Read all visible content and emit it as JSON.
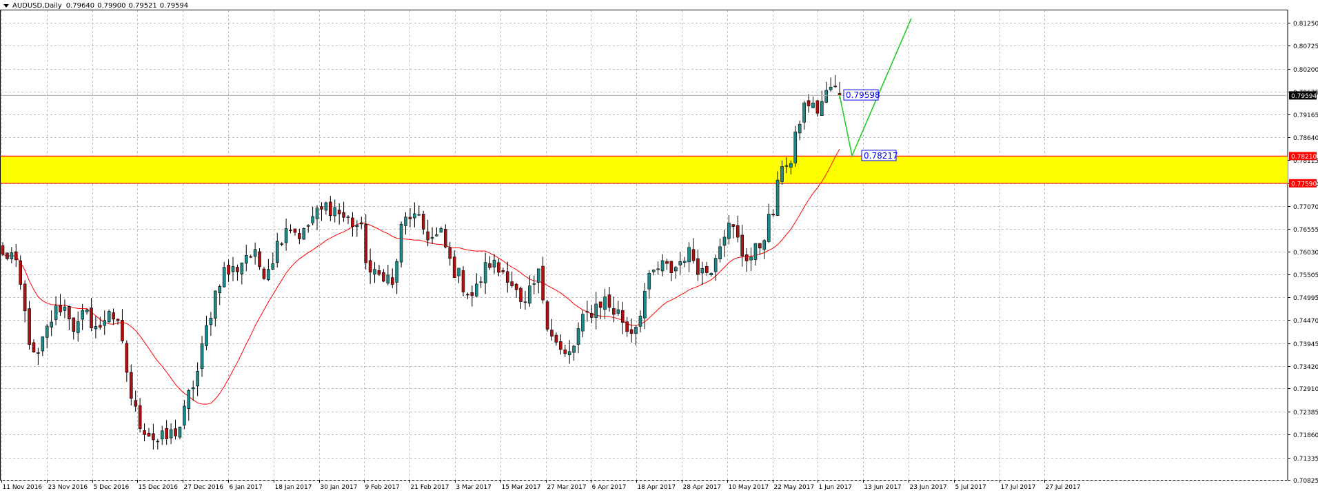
{
  "header": {
    "symbol_label": "AUDUSD,Daily",
    "open": "0.79640",
    "high": "0.79900",
    "low": "0.79521",
    "close": "0.79594"
  },
  "colors": {
    "background": "#ffffff",
    "grid": "#c0c0c0",
    "bull_candle": "#1f8a8a",
    "bear_candle": "#b01010",
    "moving_average": "#ff0000",
    "zone_fill": "#ffff00",
    "zone_border": "#ff0000",
    "projection_line": "#22cc22",
    "price_tag_bg": "#000000",
    "label_border": "#0000ff",
    "label_text": "#0000ff"
  },
  "chart_data": {
    "type": "candlestick",
    "title": "AUDUSD,Daily",
    "ylim": [
      0.70825,
      0.8155
    ],
    "y_ticks": [
      "0.81250",
      "0.80725",
      "0.80200",
      "0.79675",
      "0.79165",
      "0.78640",
      "0.78115",
      "0.77590",
      "0.77070",
      "0.76555",
      "0.76030",
      "0.75505",
      "0.74995",
      "0.74470",
      "0.73945",
      "0.73420",
      "0.72910",
      "0.72385",
      "0.71860",
      "0.71335",
      "0.70825"
    ],
    "x_ticks": [
      "11 Nov 2016",
      "23 Nov 2016",
      "5 Dec 2016",
      "15 Dec 2016",
      "27 Dec 2016",
      "6 Jan 2017",
      "18 Jan 2017",
      "30 Jan 2017",
      "9 Feb 2017",
      "21 Feb 2017",
      "3 Mar 2017",
      "15 Mar 2017",
      "27 Mar 2017",
      "6 Apr 2017",
      "18 Apr 2017",
      "28 Apr 2017",
      "10 May 2017",
      "22 May 2017",
      "1 Jun 2017",
      "13 Jun 2017",
      "23 Jun 2017",
      "5 Jul 2017",
      "17 Jul 2017",
      "27 Jul 2017"
    ],
    "current_price": "0.79594",
    "zone": {
      "upper": "0.78210",
      "lower": "0.77590"
    },
    "annotations": [
      {
        "text": "0.79598",
        "value": 0.79598
      },
      {
        "text": "0.78217",
        "value": 0.78217
      }
    ],
    "projection": [
      0.79598,
      0.78217,
      0.8135
    ],
    "close_path": [
      0.759,
      0.76,
      0.754,
      0.743,
      0.734,
      0.74,
      0.745,
      0.748,
      0.747,
      0.742,
      0.746,
      0.7445,
      0.742,
      0.748,
      0.744,
      0.736,
      0.725,
      0.721,
      0.719,
      0.717,
      0.7175,
      0.719,
      0.721,
      0.728,
      0.733,
      0.742,
      0.75,
      0.756,
      0.7555,
      0.757,
      0.76,
      0.759,
      0.756,
      0.758,
      0.763,
      0.767,
      0.765,
      0.764,
      0.768,
      0.769,
      0.771,
      0.77,
      0.768,
      0.767,
      0.766,
      0.756,
      0.754,
      0.756,
      0.752,
      0.765,
      0.769,
      0.767,
      0.765,
      0.763,
      0.764,
      0.758,
      0.755,
      0.752,
      0.75,
      0.755,
      0.758,
      0.756,
      0.756,
      0.752,
      0.746,
      0.751,
      0.755,
      0.745,
      0.74,
      0.736,
      0.737,
      0.743,
      0.746,
      0.748,
      0.7495,
      0.747,
      0.746,
      0.742,
      0.744,
      0.751,
      0.755,
      0.757,
      0.756,
      0.757,
      0.76,
      0.759,
      0.756,
      0.756,
      0.762,
      0.766,
      0.765,
      0.76,
      0.759,
      0.761,
      0.766,
      0.77,
      0.782,
      0.78,
      0.79,
      0.795,
      0.792,
      0.795,
      0.798,
      0.7959
    ]
  }
}
